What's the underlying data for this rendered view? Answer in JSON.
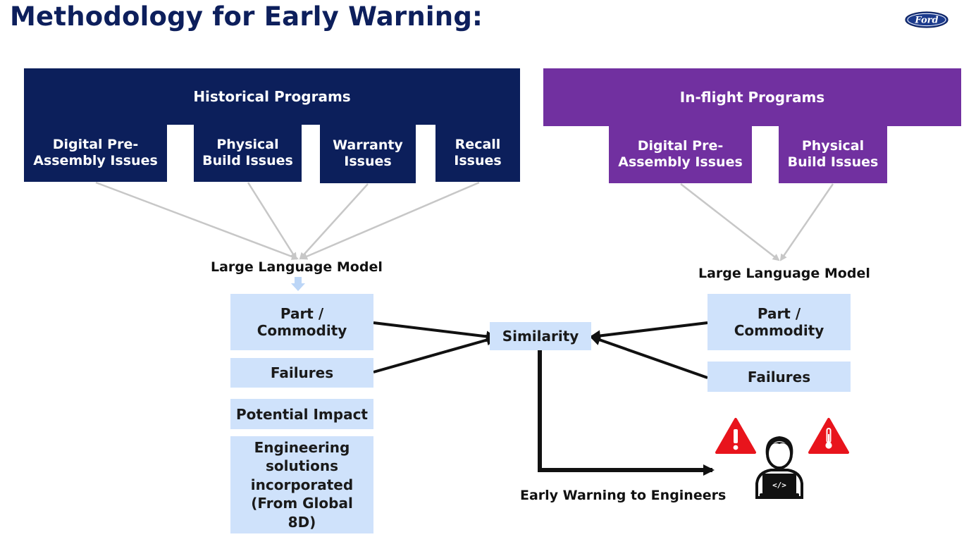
{
  "title": "Methodology for Early Warning:",
  "logo_text": "Ford",
  "historical": {
    "header": "Historical Programs",
    "items": [
      "Digital Pre-\nAssembly Issues",
      "Physical\nBuild Issues",
      "Warranty\nIssues",
      "Recall\nIssues"
    ]
  },
  "inflight": {
    "header": "In-flight Programs",
    "items": [
      "Digital Pre-\nAssembly Issues",
      "Physical\nBuild Issues"
    ]
  },
  "llm_left": "Large Language Model",
  "llm_right": "Large Language Model",
  "left_boxes": [
    "Part /\nCommodity",
    "Failures",
    "Potential Impact",
    "Engineering\nsolutions\nincorporated\n(From Global\n8D)"
  ],
  "right_boxes": [
    "Part /\nCommodity",
    "Failures"
  ],
  "similarity": "Similarity",
  "early_warning": "Early Warning to Engineers",
  "colors": {
    "navy": "#0c1f5b",
    "purple": "#7130a0",
    "light_blue": "#cfe2fb",
    "warning_red": "#e8141c"
  },
  "icons": [
    "warning-icon",
    "thermometer-warning-icon",
    "engineer-laptop-icon",
    "ford-logo"
  ]
}
